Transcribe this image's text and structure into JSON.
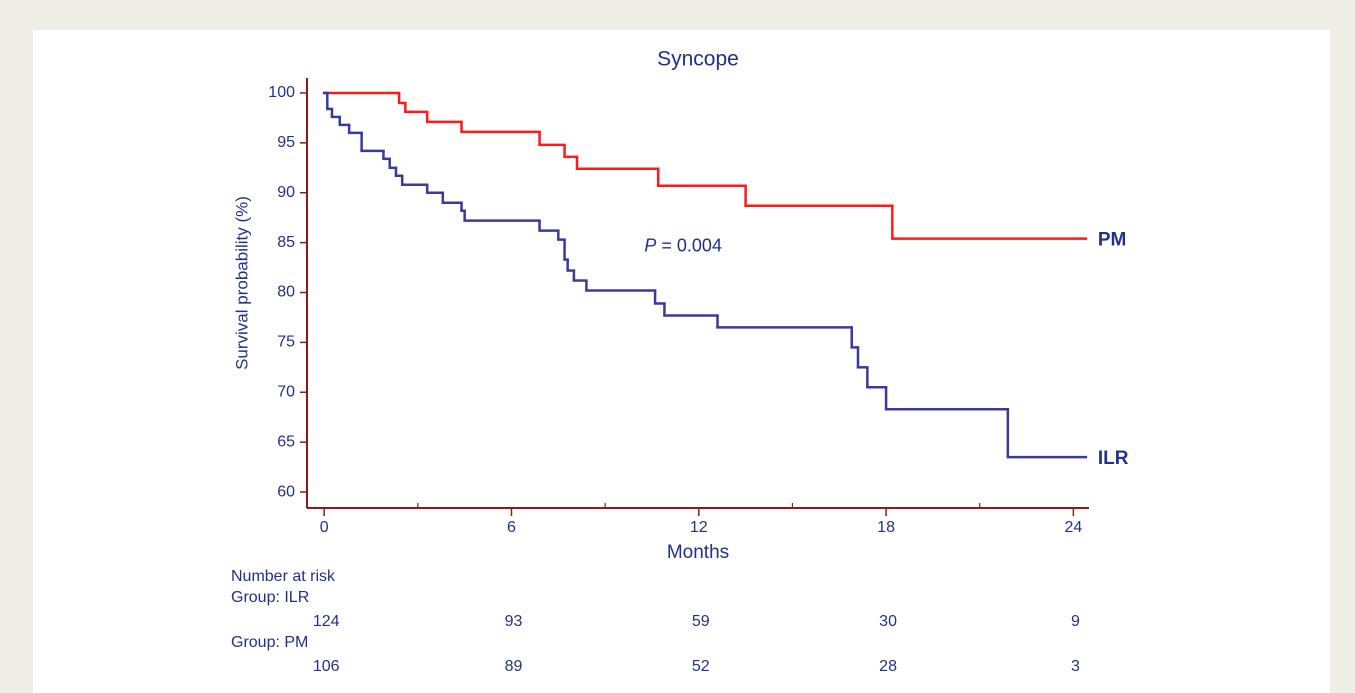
{
  "chart_data": {
    "type": "step",
    "title": "Syncope",
    "xlabel": "Months",
    "ylabel": "Survival probability (%)",
    "xlim": [
      -0.55,
      24.5
    ],
    "ylim": [
      58.4,
      101.5
    ],
    "xticks": [
      0,
      6,
      12,
      18,
      24
    ],
    "xminorticks": [
      3,
      9,
      15,
      21
    ],
    "yticks": [
      60,
      65,
      70,
      75,
      80,
      85,
      90,
      95,
      100
    ],
    "axis_color": "#8b1a1a",
    "text_color": "#23308a",
    "series": [
      {
        "name": "PM",
        "color": "#ff1a1a",
        "x": [
          0,
          2.4,
          2.6,
          3.3,
          4.4,
          6.9,
          7.7,
          8.1,
          10.7,
          13.5,
          18.2,
          24.4
        ],
        "values": [
          100,
          99,
          98.1,
          97.1,
          96.1,
          94.8,
          93.6,
          92.4,
          90.7,
          88.7,
          85.4,
          85.4
        ]
      },
      {
        "name": "ILR",
        "color": "#3a3a9e",
        "x": [
          0,
          0.1,
          0.25,
          0.5,
          0.8,
          1.2,
          1.9,
          2.1,
          2.3,
          2.5,
          3.3,
          3.8,
          4.4,
          4.5,
          6.9,
          7.5,
          7.7,
          7.8,
          8.0,
          8.4,
          10.6,
          10.9,
          12.6,
          16.9,
          17.1,
          17.4,
          18.0,
          21.9,
          24.4
        ],
        "values": [
          100,
          98.4,
          97.6,
          96.8,
          96.0,
          94.2,
          93.4,
          92.5,
          91.7,
          90.8,
          90.0,
          89.0,
          88.2,
          87.2,
          86.2,
          85.3,
          83.3,
          82.2,
          81.2,
          80.2,
          78.9,
          77.7,
          76.5,
          74.5,
          72.5,
          70.5,
          68.3,
          63.5,
          63.5
        ]
      }
    ],
    "annotation": {
      "italic": "P",
      "text": " = 0.004",
      "x": 11.5,
      "y": 84.6
    },
    "risk_table": {
      "title": "Number at risk",
      "rows": [
        {
          "label": "Group: ILR",
          "values": [
            124,
            93,
            59,
            30,
            9
          ]
        },
        {
          "label": "Group: PM",
          "values": [
            106,
            89,
            52,
            28,
            3
          ]
        }
      ]
    }
  }
}
